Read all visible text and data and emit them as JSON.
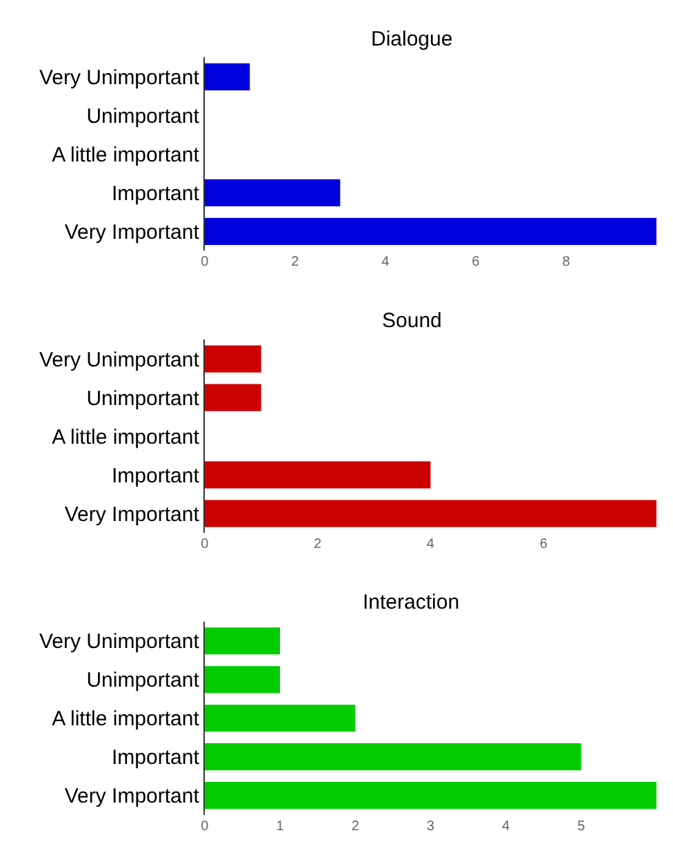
{
  "chart_data": [
    {
      "type": "bar",
      "orientation": "horizontal",
      "title": "Dialogue",
      "categories": [
        "Very Unimportant",
        "Unimportant",
        "A little important",
        "Important",
        "Very Important"
      ],
      "values": [
        1,
        0,
        0,
        3,
        10
      ],
      "color": "#0000dd",
      "xlim": [
        0,
        10
      ],
      "xticks": [
        0,
        2,
        4,
        6,
        8
      ]
    },
    {
      "type": "bar",
      "orientation": "horizontal",
      "title": "Sound",
      "categories": [
        "Very Unimportant",
        "Unimportant",
        "A little important",
        "Important",
        "Very Important"
      ],
      "values": [
        1,
        1,
        0,
        4,
        8
      ],
      "color": "#cc0000",
      "xlim": [
        0,
        8
      ],
      "xticks": [
        0,
        2,
        4,
        6
      ]
    },
    {
      "type": "bar",
      "orientation": "horizontal",
      "title": "Interaction",
      "categories": [
        "Very Unimportant",
        "Unimportant",
        "A little important",
        "Important",
        "Very Important"
      ],
      "values": [
        1,
        1,
        2,
        5,
        6
      ],
      "color": "#00cc00",
      "xlim": [
        0,
        6
      ],
      "xticks": [
        0,
        1,
        2,
        3,
        4,
        5
      ]
    }
  ]
}
